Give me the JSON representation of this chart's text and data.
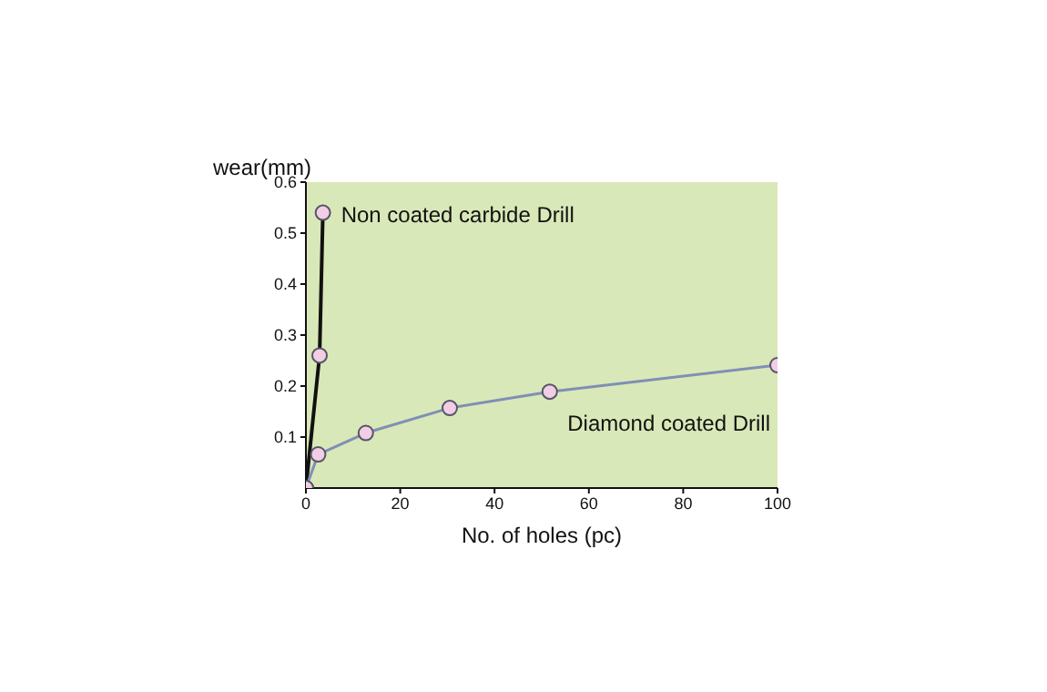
{
  "chart_data": {
    "type": "line",
    "xlabel": "No. of holes (pc)",
    "ylabel": "wear(mm)",
    "xlim": [
      0,
      100
    ],
    "xticks": [
      0,
      20,
      40,
      60,
      80,
      100
    ],
    "ylim": [
      0,
      0.6
    ],
    "yticks": [
      0.1,
      0.2,
      0.3,
      0.4,
      0.5,
      0.6
    ],
    "grid": false,
    "legend": false,
    "marker": "circle",
    "line_style": "solid",
    "series": [
      {
        "name": "Non coated carbide Drill",
        "color": "#111111",
        "x": [
          0,
          2.9,
          3.6
        ],
        "values": [
          0,
          0.26,
          0.54
        ]
      },
      {
        "name": "Diamond coated Drill",
        "color": "#7f8fb5",
        "x": [
          0,
          2.6,
          12.7,
          30.5,
          51.7,
          100
        ],
        "values": [
          0,
          0.066,
          0.108,
          0.157,
          0.189,
          0.241
        ]
      }
    ]
  }
}
